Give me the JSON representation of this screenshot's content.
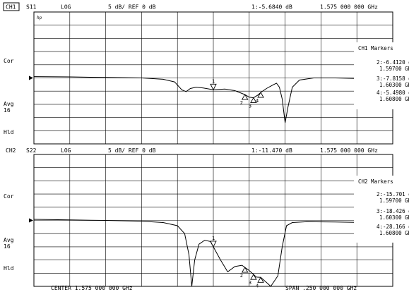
{
  "colors": {
    "background": "#ffffff",
    "ink": "#000000",
    "grid": "#000000"
  },
  "channels": [
    {
      "id": "ch1",
      "label": "CH1",
      "param": "S11",
      "format": "LOG",
      "scale": "5 dB/ REF 0 dB",
      "active_marker": "1:-5.6840 dB",
      "active_freq": "1.575 000 000 GHz",
      "corner_text": "hp",
      "side_labels": {
        "cor": "Cor",
        "avg": "Avg",
        "avg_n": "16",
        "hld": "Hld"
      },
      "marker_table_title": "CH1 Markers",
      "markers": [
        {
          "num": "1",
          "value": "-5.6840 dB",
          "freq": "1.575 000 000 GHz"
        },
        {
          "num": "2",
          "value": "-6.4120 dB",
          "freq": "1.59700 GHz"
        },
        {
          "num": "3",
          "value": "-7.8158 dB",
          "freq": "1.60300 GHz"
        },
        {
          "num": "4",
          "value": "-5.4980 dB",
          "freq": "1.60800 GHz"
        }
      ]
    },
    {
      "id": "ch2",
      "label": "CH2",
      "param": "S22",
      "format": "LOG",
      "scale": "5 dB/ REF 0 dB",
      "active_marker": "1:-11.470 dB",
      "active_freq": "1.575 000 000 GHz",
      "side_labels": {
        "cor": "Cor",
        "avg": "Avg",
        "avg_n": "16",
        "hld": "Hld"
      },
      "marker_table_title": "CH2 Markers",
      "markers": [
        {
          "num": "1",
          "value": "-11.470 dB",
          "freq": "1.575 000 000 GHz"
        },
        {
          "num": "2",
          "value": "-15.701 dB",
          "freq": "1.59700 GHz"
        },
        {
          "num": "3",
          "value": "-18.426 dB",
          "freq": "1.60300 GHz"
        },
        {
          "num": "4",
          "value": "-28.166 dB",
          "freq": "1.60800 GHz"
        }
      ]
    }
  ],
  "footer": {
    "center": "CENTER 1.575 000 000 GHz",
    "span": "SPAN .250 000 000 GHz"
  },
  "chart_data": [
    {
      "type": "line",
      "name": "CH1",
      "x_unit": "GHz",
      "y_unit": "dB",
      "xlim": [
        1.45,
        1.7
      ],
      "ylim": [
        -50,
        0
      ],
      "ref_level": -25,
      "grid": true,
      "series": [
        {
          "x": [
            1.45,
            1.475,
            1.5,
            1.525,
            1.54,
            1.548,
            1.553,
            1.556,
            1.559,
            1.563,
            1.568,
            1.575,
            1.583,
            1.59,
            1.597,
            1.6,
            1.603,
            1.606,
            1.608,
            1.612,
            1.617,
            1.619,
            1.621,
            1.623,
            1.625,
            1.627,
            1.63,
            1.635,
            1.645,
            1.66,
            1.68,
            1.7
          ],
          "y": [
            -24.5,
            -24.6,
            -24.8,
            -25,
            -25.5,
            -26.5,
            -29.5,
            -30.2,
            -29,
            -28.5,
            -28.8,
            -29.5,
            -29.2,
            -29.8,
            -31.3,
            -32.3,
            -32.5,
            -31.5,
            -30.5,
            -29,
            -27.5,
            -27,
            -28.5,
            -33,
            -42,
            -36,
            -28.5,
            -25.8,
            -25,
            -25,
            -25.3,
            -25.5
          ]
        }
      ],
      "markers": [
        {
          "num": "1",
          "x": 1.575,
          "y": -5.684
        },
        {
          "num": "2",
          "x": 1.597,
          "y": -6.412
        },
        {
          "num": "3",
          "x": 1.603,
          "y": -7.8158
        },
        {
          "num": "4",
          "x": 1.608,
          "y": -5.498
        }
      ]
    },
    {
      "type": "line",
      "name": "CH2",
      "x_unit": "GHz",
      "y_unit": "dB",
      "xlim": [
        1.45,
        1.7
      ],
      "ylim": [
        -50,
        0
      ],
      "ref_level": -25,
      "grid": true,
      "series": [
        {
          "x": [
            1.45,
            1.475,
            1.5,
            1.525,
            1.54,
            1.55,
            1.555,
            1.558,
            1.56,
            1.562,
            1.565,
            1.569,
            1.573,
            1.576,
            1.58,
            1.585,
            1.59,
            1.595,
            1.6,
            1.605,
            1.608,
            1.612,
            1.615,
            1.62,
            1.623,
            1.626,
            1.63,
            1.64,
            1.66,
            1.7
          ],
          "y": [
            -24.6,
            -24.8,
            -25,
            -25.3,
            -25.8,
            -27,
            -30,
            -38,
            -50,
            -40,
            -34,
            -32.5,
            -33,
            -36,
            -40,
            -44.5,
            -42.5,
            -42,
            -44,
            -46.5,
            -46.6,
            -48.5,
            -50,
            -46,
            -35,
            -27,
            -25.8,
            -25.5,
            -25.6,
            -26
          ]
        }
      ],
      "markers": [
        {
          "num": "1",
          "x": 1.575,
          "y": -11.47
        },
        {
          "num": "2",
          "x": 1.597,
          "y": -15.701
        },
        {
          "num": "3",
          "x": 1.603,
          "y": -18.426
        },
        {
          "num": "4",
          "x": 1.608,
          "y": -28.166
        }
      ]
    }
  ]
}
